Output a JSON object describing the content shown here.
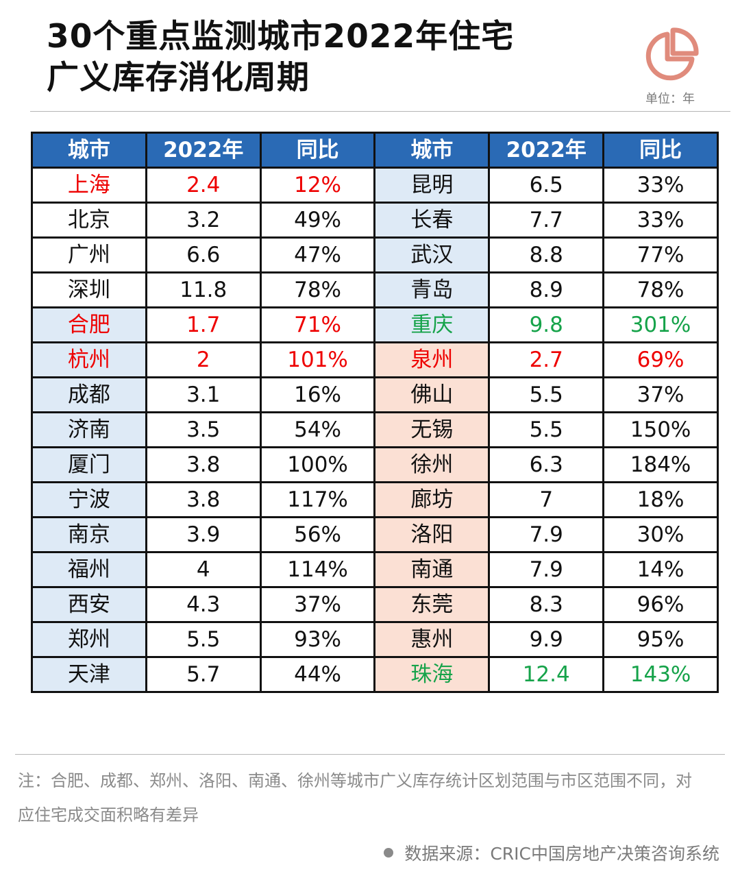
{
  "header": {
    "title_line1": "30个重点监测城市2022年住宅",
    "title_line2": "广义库存消化周期",
    "unit": "单位：年",
    "icon": "pie-chart-icon",
    "icon_color": "#e08b7c"
  },
  "colors": {
    "header_bg": "#2a6ab5",
    "light_blue": "#deeaf6",
    "peach": "#fbe0d4",
    "highlight_red": "#ee0000",
    "highlight_green": "#16a34a"
  },
  "chart_data": {
    "type": "table",
    "columns": [
      "城市",
      "2022年",
      "同比",
      "城市",
      "2022年",
      "同比"
    ],
    "left": [
      {
        "city": "上海",
        "year": "2.4",
        "yoy": "12%",
        "fill": "white",
        "mark": "red"
      },
      {
        "city": "北京",
        "year": "3.2",
        "yoy": "49%",
        "fill": "white",
        "mark": ""
      },
      {
        "city": "广州",
        "year": "6.6",
        "yoy": "47%",
        "fill": "white",
        "mark": ""
      },
      {
        "city": "深圳",
        "year": "11.8",
        "yoy": "78%",
        "fill": "white",
        "mark": ""
      },
      {
        "city": "合肥",
        "year": "1.7",
        "yoy": "71%",
        "fill": "blue",
        "mark": "red"
      },
      {
        "city": "杭州",
        "year": "2",
        "yoy": "101%",
        "fill": "blue",
        "mark": "red"
      },
      {
        "city": "成都",
        "year": "3.1",
        "yoy": "16%",
        "fill": "blue",
        "mark": ""
      },
      {
        "city": "济南",
        "year": "3.5",
        "yoy": "54%",
        "fill": "blue",
        "mark": ""
      },
      {
        "city": "厦门",
        "year": "3.8",
        "yoy": "100%",
        "fill": "blue",
        "mark": ""
      },
      {
        "city": "宁波",
        "year": "3.8",
        "yoy": "117%",
        "fill": "blue",
        "mark": ""
      },
      {
        "city": "南京",
        "year": "3.9",
        "yoy": "56%",
        "fill": "blue",
        "mark": ""
      },
      {
        "city": "福州",
        "year": "4",
        "yoy": "114%",
        "fill": "blue",
        "mark": ""
      },
      {
        "city": "西安",
        "year": "4.3",
        "yoy": "37%",
        "fill": "blue",
        "mark": ""
      },
      {
        "city": "郑州",
        "year": "5.5",
        "yoy": "93%",
        "fill": "blue",
        "mark": ""
      },
      {
        "city": "天津",
        "year": "5.7",
        "yoy": "44%",
        "fill": "blue",
        "mark": ""
      }
    ],
    "right": [
      {
        "city": "昆明",
        "year": "6.5",
        "yoy": "33%",
        "fill": "blue",
        "mark": ""
      },
      {
        "city": "长春",
        "year": "7.7",
        "yoy": "33%",
        "fill": "blue",
        "mark": ""
      },
      {
        "city": "武汉",
        "year": "8.8",
        "yoy": "77%",
        "fill": "blue",
        "mark": ""
      },
      {
        "city": "青岛",
        "year": "8.9",
        "yoy": "78%",
        "fill": "blue",
        "mark": ""
      },
      {
        "city": "重庆",
        "year": "9.8",
        "yoy": "301%",
        "fill": "blue",
        "mark": "green"
      },
      {
        "city": "泉州",
        "year": "2.7",
        "yoy": "69%",
        "fill": "peach",
        "mark": "red"
      },
      {
        "city": "佛山",
        "year": "5.5",
        "yoy": "37%",
        "fill": "peach",
        "mark": ""
      },
      {
        "city": "无锡",
        "year": "5.5",
        "yoy": "150%",
        "fill": "peach",
        "mark": ""
      },
      {
        "city": "徐州",
        "year": "6.3",
        "yoy": "184%",
        "fill": "peach",
        "mark": ""
      },
      {
        "city": "廊坊",
        "year": "7",
        "yoy": "18%",
        "fill": "peach",
        "mark": ""
      },
      {
        "city": "洛阳",
        "year": "7.9",
        "yoy": "30%",
        "fill": "peach",
        "mark": ""
      },
      {
        "city": "南通",
        "year": "7.9",
        "yoy": "14%",
        "fill": "peach",
        "mark": ""
      },
      {
        "city": "东莞",
        "year": "8.3",
        "yoy": "96%",
        "fill": "peach",
        "mark": ""
      },
      {
        "city": "惠州",
        "year": "9.9",
        "yoy": "95%",
        "fill": "peach",
        "mark": ""
      },
      {
        "city": "珠海",
        "year": "12.4",
        "yoy": "143%",
        "fill": "peach",
        "mark": "green"
      }
    ]
  },
  "footer": {
    "note": "注：合肥、成都、郑州、洛阳、南通、徐州等城市广义库存统计区划范围与市区范围不同，对应住宅成交面积略有差异",
    "source": "数据来源：CRIC中国房地产决策咨询系统"
  }
}
